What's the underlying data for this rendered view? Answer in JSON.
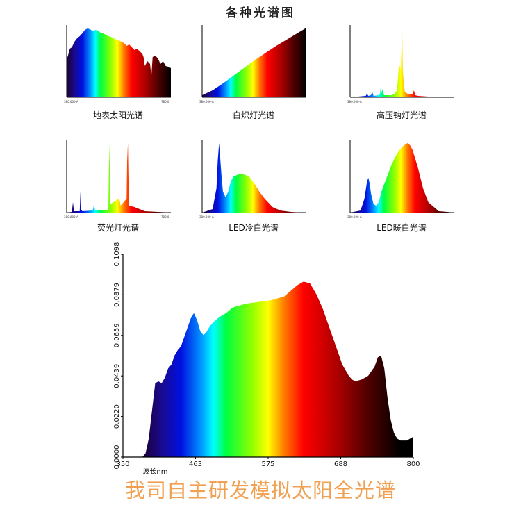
{
  "page": {
    "title": "各种光谱图",
    "slogan": "我司自主研发模拟太阳全光谱"
  },
  "chart_data": [
    {
      "type": "area",
      "caption": "地表太阳光谱",
      "x_start_label": "380.000-A",
      "x_end_label": "780.0",
      "x": [
        380,
        385,
        392,
        400,
        410,
        420,
        430,
        440,
        450,
        460,
        470,
        480,
        490,
        500,
        510,
        520,
        530,
        540,
        550,
        560,
        570,
        580,
        590,
        600,
        610,
        620,
        630,
        640,
        650,
        660,
        670,
        675,
        680,
        690,
        700,
        705,
        710,
        720,
        730,
        740,
        750,
        760,
        770,
        780
      ],
      "values": [
        0.55,
        0.6,
        0.7,
        0.72,
        0.8,
        0.85,
        0.88,
        0.92,
        0.97,
        0.99,
        0.98,
        0.95,
        0.97,
        0.96,
        0.93,
        0.92,
        0.9,
        0.88,
        0.87,
        0.85,
        0.83,
        0.82,
        0.8,
        0.78,
        0.74,
        0.76,
        0.72,
        0.68,
        0.7,
        0.66,
        0.63,
        0.58,
        0.45,
        0.52,
        0.48,
        0.3,
        0.58,
        0.6,
        0.56,
        0.48,
        0.52,
        0.45,
        0.44,
        0.42
      ]
    },
    {
      "type": "area",
      "caption": "白炽灯光谱",
      "x_start_label": "380.000-A",
      "x": [
        380,
        420,
        460,
        500,
        540,
        580,
        620,
        660,
        700,
        740,
        780
      ],
      "values": [
        0.03,
        0.1,
        0.2,
        0.31,
        0.42,
        0.53,
        0.63,
        0.73,
        0.82,
        0.91,
        1.0
      ]
    },
    {
      "type": "area",
      "caption": "高压钠灯光谱",
      "x_start_label": "380.000-A",
      "x": [
        380,
        440,
        445,
        450,
        460,
        465,
        470,
        490,
        495,
        498,
        500,
        505,
        510,
        540,
        550,
        560,
        568,
        574,
        578,
        580,
        582,
        586,
        590,
        600,
        620,
        625,
        630,
        640,
        680,
        780
      ],
      "values": [
        0.0,
        0.02,
        0.05,
        0.02,
        0.03,
        0.08,
        0.02,
        0.03,
        0.05,
        0.18,
        0.06,
        0.12,
        0.03,
        0.03,
        0.05,
        0.1,
        0.48,
        0.4,
        0.78,
        1.0,
        0.4,
        0.2,
        0.08,
        0.05,
        0.05,
        0.1,
        0.03,
        0.02,
        0.01,
        0.0
      ]
    },
    {
      "type": "area",
      "caption": "荧光灯光谱",
      "x_start_label": "380.000-A",
      "x_end_label": "780.0",
      "x": [
        380,
        400,
        404,
        408,
        430,
        433,
        436,
        440,
        480,
        485,
        488,
        491,
        540,
        542,
        545,
        548,
        580,
        583,
        587,
        610,
        612,
        615,
        618,
        620,
        640,
        680,
        780
      ],
      "values": [
        0.0,
        0.01,
        0.15,
        0.02,
        0.02,
        0.3,
        0.04,
        0.02,
        0.03,
        0.12,
        0.05,
        0.03,
        0.04,
        0.6,
        0.98,
        0.12,
        0.2,
        0.18,
        0.1,
        0.2,
        0.72,
        1.0,
        0.3,
        0.1,
        0.08,
        0.02,
        0.0
      ]
    },
    {
      "type": "area",
      "caption": "LED冷白光谱",
      "x_start_label": "380.000-A",
      "x": [
        380,
        420,
        435,
        440,
        445,
        450,
        455,
        460,
        470,
        480,
        490,
        500,
        520,
        540,
        560,
        580,
        600,
        620,
        650,
        680,
        720,
        760,
        780
      ],
      "values": [
        0.0,
        0.05,
        0.35,
        0.75,
        1.0,
        0.75,
        0.5,
        0.3,
        0.22,
        0.3,
        0.45,
        0.52,
        0.55,
        0.55,
        0.52,
        0.42,
        0.3,
        0.2,
        0.08,
        0.03,
        0.01,
        0.0,
        0.0
      ]
    },
    {
      "type": "area",
      "caption": "LED暖白光谱",
      "x_start_label": "380.000-A",
      "x": [
        380,
        420,
        435,
        445,
        450,
        455,
        460,
        470,
        480,
        490,
        500,
        520,
        540,
        560,
        580,
        600,
        610,
        620,
        640,
        660,
        680,
        720,
        780
      ],
      "values": [
        0.0,
        0.03,
        0.2,
        0.45,
        0.5,
        0.42,
        0.28,
        0.12,
        0.1,
        0.15,
        0.3,
        0.5,
        0.7,
        0.85,
        0.95,
        1.0,
        0.97,
        0.9,
        0.65,
        0.35,
        0.15,
        0.02,
        0.0
      ]
    },
    {
      "type": "area",
      "caption": "",
      "xlabel": "波长nm",
      "xticks": [
        "350",
        "463",
        "575",
        "688",
        "800"
      ],
      "yticks": [
        "0.0000",
        "0.0220",
        "0.0439",
        "0.0659",
        "0.0879",
        "0.1098"
      ],
      "xlim": [
        350,
        800
      ],
      "ylim": [
        0,
        0.1098
      ],
      "x": [
        350,
        380,
        385,
        390,
        395,
        400,
        405,
        410,
        415,
        420,
        425,
        430,
        435,
        440,
        445,
        450,
        455,
        460,
        465,
        470,
        475,
        480,
        485,
        490,
        500,
        510,
        520,
        540,
        560,
        580,
        600,
        610,
        620,
        630,
        640,
        650,
        660,
        670,
        680,
        690,
        700,
        705,
        710,
        720,
        730,
        740,
        745,
        750,
        755,
        760,
        765,
        770,
        775,
        780,
        790,
        800
      ],
      "values": [
        0,
        0,
        0.002,
        0.01,
        0.025,
        0.04,
        0.041,
        0.04,
        0.043,
        0.048,
        0.05,
        0.055,
        0.058,
        0.06,
        0.065,
        0.07,
        0.075,
        0.078,
        0.074,
        0.068,
        0.066,
        0.068,
        0.071,
        0.073,
        0.076,
        0.078,
        0.081,
        0.083,
        0.084,
        0.085,
        0.087,
        0.09,
        0.093,
        0.095,
        0.094,
        0.088,
        0.08,
        0.07,
        0.06,
        0.05,
        0.044,
        0.042,
        0.041,
        0.042,
        0.044,
        0.049,
        0.054,
        0.055,
        0.048,
        0.032,
        0.02,
        0.013,
        0.01,
        0.009,
        0.009,
        0.011
      ]
    }
  ]
}
